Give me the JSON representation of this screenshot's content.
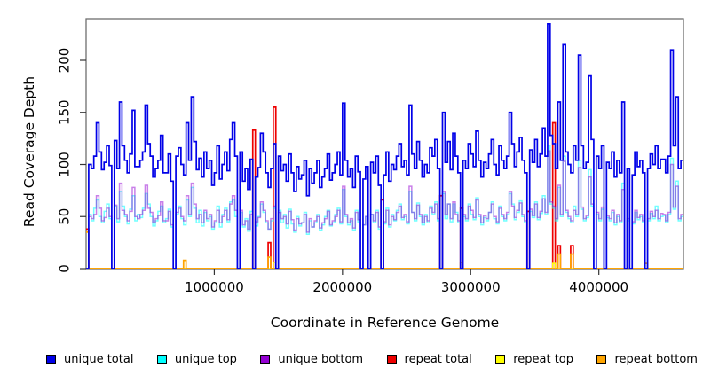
{
  "figure": {
    "background": "#ffffff",
    "box_color": "#6e6e6e",
    "tick_color": "#333333"
  },
  "axes": {
    "xlabel": "Coordinate in Reference Genome",
    "ylabel": "Read Coverage Depth",
    "ytick_labels": [
      "0",
      "50",
      "100",
      "150",
      "200"
    ],
    "xtick_labels": [
      "1000000",
      "2000000",
      "3000000",
      "4000000"
    ]
  },
  "legend": {
    "items": [
      {
        "label": "unique total",
        "color": "#0000e8"
      },
      {
        "label": "unique top",
        "color": "#00ffff"
      },
      {
        "label": "unique bottom",
        "color": "#9400d3"
      },
      {
        "label": "repeat total",
        "color": "#ee0000"
      },
      {
        "label": "repeat top",
        "color": "#ffff00"
      },
      {
        "label": "repeat bottom",
        "color": "#ffa500"
      }
    ]
  },
  "chart_data": {
    "type": "line",
    "interpolation": "step-after",
    "title": "",
    "xlabel": "Coordinate in Reference Genome",
    "ylabel": "Read Coverage Depth",
    "xlim": [
      0,
      4660000
    ],
    "ylim": [
      0,
      240
    ],
    "yticks": [
      0,
      50,
      100,
      150,
      200
    ],
    "xticks": [
      1000000,
      2000000,
      3000000,
      4000000
    ],
    "grid": false,
    "legend_position": "bottom",
    "x_start": 0,
    "x_step": 20000,
    "n_points": 234,
    "draw_order": [
      "repeat total",
      "repeat top",
      "repeat bottom",
      "unique top",
      "unique bottom",
      "unique total"
    ],
    "series": [
      {
        "name": "unique total",
        "color": "#0000e8",
        "alpha": 1,
        "lw": 1.7,
        "values": [
          0,
          100,
          96,
          108,
          140,
          112,
          95,
          102,
          118,
          99,
          0,
          123,
          96,
          160,
          118,
          104,
          92,
          110,
          152,
          98,
          98,
          104,
          112,
          157,
          120,
          108,
          88,
          96,
          104,
          128,
          92,
          92,
          110,
          84,
          0,
          108,
          116,
          100,
          90,
          140,
          104,
          165,
          122,
          95,
          106,
          88,
          112,
          96,
          104,
          80,
          92,
          118,
          86,
          100,
          112,
          94,
          124,
          140,
          108,
          0,
          112,
          84,
          96,
          76,
          105,
          0,
          88,
          97,
          130,
          112,
          92,
          78,
          96,
          120,
          0,
          108,
          94,
          100,
          84,
          110,
          92,
          74,
          98,
          86,
          90,
          104,
          70,
          96,
          82,
          92,
          104,
          78,
          88,
          96,
          110,
          85,
          92,
          100,
          112,
          90,
          159,
          104,
          88,
          96,
          78,
          108,
          93,
          0,
          86,
          98,
          0,
          102,
          92,
          108,
          80,
          0,
          90,
          112,
          84,
          100,
          95,
          108,
          120,
          98,
          104,
          90,
          157,
          110,
          96,
          122,
          104,
          88,
          100,
          92,
          116,
          108,
          124,
          96,
          0,
          150,
          102,
          122,
          95,
          130,
          108,
          92,
          0,
          104,
          96,
          120,
          110,
          98,
          132,
          104,
          88,
          102,
          96,
          110,
          124,
          100,
          90,
          118,
          104,
          96,
          108,
          150,
          120,
          98,
          112,
          126,
          104,
          92,
          0,
          114,
          102,
          124,
          98,
          110,
          135,
          108,
          235,
          128,
          120,
          96,
          160,
          104,
          215,
          112,
          100,
          92,
          118,
          104,
          205,
          118,
          96,
          102,
          185,
          124,
          0,
          108,
          96,
          118,
          0,
          102,
          96,
          112,
          88,
          104,
          92,
          160,
          0,
          96,
          0,
          90,
          112,
          98,
          104,
          92,
          0,
          96,
          110,
          100,
          118,
          96,
          105,
          105,
          92,
          108,
          210,
          118,
          165,
          96,
          104,
          88
        ]
      },
      {
        "name": "unique top",
        "color": "#00ffff",
        "alpha": 0.55,
        "lw": 1.5,
        "values": [
          0,
          52,
          46,
          58,
          66,
          50,
          44,
          55,
          62,
          48,
          0,
          60,
          45,
          74,
          60,
          50,
          43,
          57,
          70,
          46,
          52,
          49,
          58,
          72,
          62,
          50,
          41,
          46,
          55,
          60,
          44,
          48,
          57,
          40,
          0,
          52,
          60,
          48,
          42,
          66,
          50,
          78,
          58,
          44,
          56,
          41,
          54,
          46,
          50,
          38,
          44,
          60,
          40,
          52,
          58,
          45,
          64,
          66,
          50,
          0,
          54,
          40,
          48,
          36,
          55,
          0,
          41,
          50,
          62,
          54,
          44,
          38,
          46,
          58,
          0,
          56,
          44,
          52,
          39,
          57,
          43,
          35,
          50,
          41,
          44,
          54,
          33,
          46,
          40,
          44,
          52,
          37,
          42,
          50,
          56,
          41,
          44,
          52,
          58,
          43,
          76,
          50,
          42,
          46,
          37,
          56,
          44,
          0,
          42,
          50,
          0,
          52,
          44,
          56,
          38,
          0,
          43,
          58,
          40,
          52,
          46,
          56,
          62,
          47,
          50,
          43,
          74,
          54,
          46,
          63,
          50,
          42,
          52,
          44,
          60,
          52,
          64,
          46,
          0,
          72,
          48,
          62,
          45,
          62,
          54,
          44,
          0,
          50,
          46,
          62,
          52,
          47,
          68,
          50,
          42,
          49,
          46,
          54,
          64,
          48,
          43,
          60,
          50,
          46,
          52,
          72,
          62,
          47,
          54,
          65,
          50,
          44,
          0,
          55,
          49,
          64,
          47,
          53,
          70,
          52,
          118,
          62,
          58,
          46,
          78,
          50,
          108,
          54,
          48,
          44,
          60,
          50,
          104,
          57,
          46,
          49,
          95,
          60,
          0,
          52,
          46,
          57,
          0,
          49,
          46,
          54,
          42,
          50,
          44,
          82,
          0,
          46,
          0,
          43,
          54,
          47,
          50,
          44,
          0,
          46,
          53,
          48,
          60,
          46,
          50,
          51,
          44,
          52,
          106,
          57,
          84,
          46,
          50,
          42
        ]
      },
      {
        "name": "unique bottom",
        "color": "#9400d3",
        "alpha": 0.5,
        "lw": 1.5,
        "values": [
          0,
          50,
          48,
          52,
          70,
          58,
          46,
          49,
          58,
          50,
          0,
          61,
          48,
          82,
          56,
          52,
          46,
          55,
          78,
          50,
          48,
          52,
          56,
          80,
          58,
          54,
          44,
          48,
          51,
          64,
          46,
          46,
          55,
          42,
          0,
          54,
          58,
          50,
          46,
          70,
          52,
          82,
          62,
          48,
          52,
          44,
          56,
          48,
          52,
          40,
          46,
          56,
          44,
          50,
          56,
          47,
          62,
          70,
          56,
          0,
          56,
          42,
          46,
          38,
          52,
          0,
          45,
          49,
          64,
          56,
          46,
          38,
          48,
          60,
          0,
          54,
          48,
          50,
          43,
          55,
          47,
          37,
          48,
          43,
          44,
          52,
          35,
          48,
          40,
          46,
          50,
          39,
          44,
          48,
          55,
          42,
          46,
          50,
          56,
          45,
          79,
          52,
          44,
          48,
          39,
          54,
          47,
          0,
          42,
          50,
          0,
          52,
          46,
          54,
          40,
          0,
          45,
          56,
          42,
          50,
          47,
          54,
          60,
          49,
          52,
          45,
          79,
          54,
          48,
          61,
          52,
          44,
          50,
          46,
          58,
          54,
          62,
          48,
          0,
          74,
          52,
          62,
          48,
          64,
          52,
          46,
          0,
          52,
          48,
          60,
          56,
          49,
          66,
          52,
          44,
          51,
          48,
          54,
          62,
          50,
          45,
          58,
          52,
          48,
          54,
          74,
          60,
          49,
          56,
          63,
          52,
          46,
          0,
          57,
          51,
          62,
          49,
          55,
          67,
          54,
          113,
          64,
          60,
          48,
          80,
          52,
          103,
          56,
          50,
          46,
          56,
          52,
          97,
          59,
          48,
          51,
          88,
          62,
          0,
          54,
          48,
          59,
          0,
          51,
          48,
          56,
          44,
          52,
          46,
          76,
          0,
          48,
          0,
          45,
          56,
          49,
          52,
          46,
          0,
          48,
          55,
          50,
          56,
          48,
          53,
          52,
          46,
          54,
          100,
          59,
          79,
          48,
          52,
          44
        ]
      },
      {
        "name": "repeat total",
        "color": "#ee0000",
        "alpha": 1,
        "lw": 1.7,
        "baseline": 0,
        "spikes": [
          [
            0,
            38
          ],
          [
            65,
            133
          ],
          [
            71,
            25
          ],
          [
            73,
            155
          ],
          [
            115,
            66
          ],
          [
            138,
            70
          ],
          [
            146,
            58
          ],
          [
            172,
            55
          ],
          [
            182,
            140
          ],
          [
            184,
            22
          ],
          [
            189,
            22
          ]
        ]
      },
      {
        "name": "repeat top",
        "color": "#ffff00",
        "alpha": 1,
        "lw": 1.4,
        "baseline": 0,
        "spikes": [
          [
            73,
            6
          ],
          [
            182,
            5
          ]
        ]
      },
      {
        "name": "repeat bottom",
        "color": "#ffa500",
        "alpha": 1,
        "lw": 1.7,
        "baseline": 0,
        "spikes": [
          [
            0,
            35
          ],
          [
            38,
            8
          ],
          [
            71,
            11
          ],
          [
            146,
            6
          ],
          [
            184,
            14
          ],
          [
            189,
            14
          ],
          [
            218,
            5
          ]
        ]
      }
    ]
  }
}
